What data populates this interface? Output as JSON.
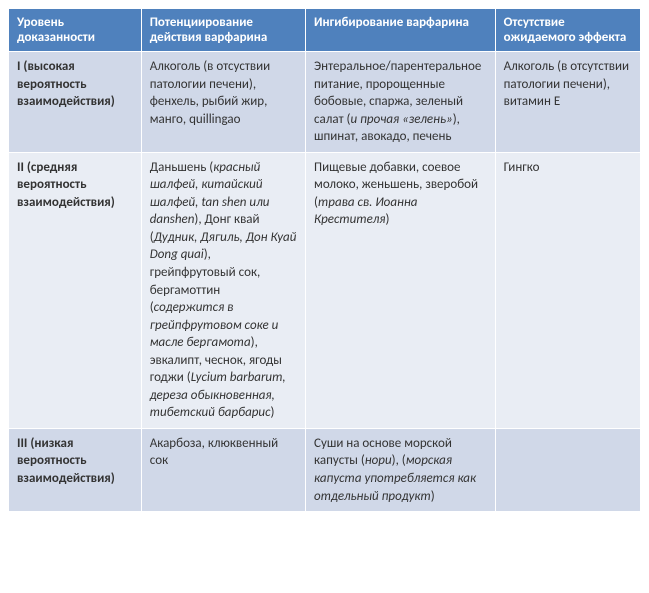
{
  "table": {
    "col_widths": [
      "21%",
      "26%",
      "30%",
      "23%"
    ],
    "header_bg": "#4f81bd",
    "header_color": "#ffffff",
    "band_a_bg": "#d0d8e8",
    "band_b_bg": "#e9edf4",
    "headers": [
      "Уровень доказанности",
      "Потенциирование действия варфарина",
      "Ингибирование варфарина",
      "Отсутствие ожидаемого эффекта"
    ],
    "rows": [
      {
        "band": "a",
        "level": "I (высокая вероятность взаимодействия)",
        "pot": [
          {
            "t": "Алкоголь (в отсуствии патологии печени), фенхель, рыбий жир, манго, quillingao",
            "i": false
          }
        ],
        "inh": [
          {
            "t": "Энтеральное/парентеральное питание, пророщенные бобовые, спаржа, зеленый салат (",
            "i": false
          },
          {
            "t": "и прочая «зелень»",
            "i": true
          },
          {
            "t": "), шпинат, авокадо, печень",
            "i": false
          }
        ],
        "abs": [
          {
            "t": "Алкоголь (в отсутствии патологии печени), витамин E",
            "i": false
          }
        ]
      },
      {
        "band": "b",
        "level": "II (средняя вероятность взаимодействия)",
        "pot": [
          {
            "t": "Даньшень (",
            "i": false
          },
          {
            "t": "красный шалфей, китайский шалфей, tan shen или danshen",
            "i": true
          },
          {
            "t": "), Донг квай (",
            "i": false
          },
          {
            "t": "Дудник, Дягиль, Дон Куай Dong quai",
            "i": true
          },
          {
            "t": "), грейпфрутовый сок, бергамоттин (",
            "i": false
          },
          {
            "t": "содержится в грейпфрутовом соке и масле бергамота",
            "i": true
          },
          {
            "t": "), эвкалипт, чеснок, ягоды годжи (",
            "i": false
          },
          {
            "t": "Lycium barbarum, дереза обыкновенная, тибетский барбарис",
            "i": true
          },
          {
            "t": ")",
            "i": false
          }
        ],
        "inh": [
          {
            "t": "Пищевые добавки, соевое молоко, женьшень, зверобой (",
            "i": false
          },
          {
            "t": "трава св. Иоанна Крестителя",
            "i": true
          },
          {
            "t": ")",
            "i": false
          }
        ],
        "abs": [
          {
            "t": "Гингко",
            "i": false
          }
        ]
      },
      {
        "band": "a",
        "level": "III (низкая вероятность взаимодействия)",
        "pot": [
          {
            "t": "Акарбоза, клюквенный сок",
            "i": false
          }
        ],
        "inh": [
          {
            "t": "Суши на основе морской капусты (",
            "i": false
          },
          {
            "t": "нори",
            "i": true
          },
          {
            "t": "), (",
            "i": false
          },
          {
            "t": "морская капуста употребляется как отдельный продукт",
            "i": true
          },
          {
            "t": ")",
            "i": false
          }
        ],
        "abs": [
          {
            "t": "",
            "i": false
          }
        ]
      }
    ]
  }
}
